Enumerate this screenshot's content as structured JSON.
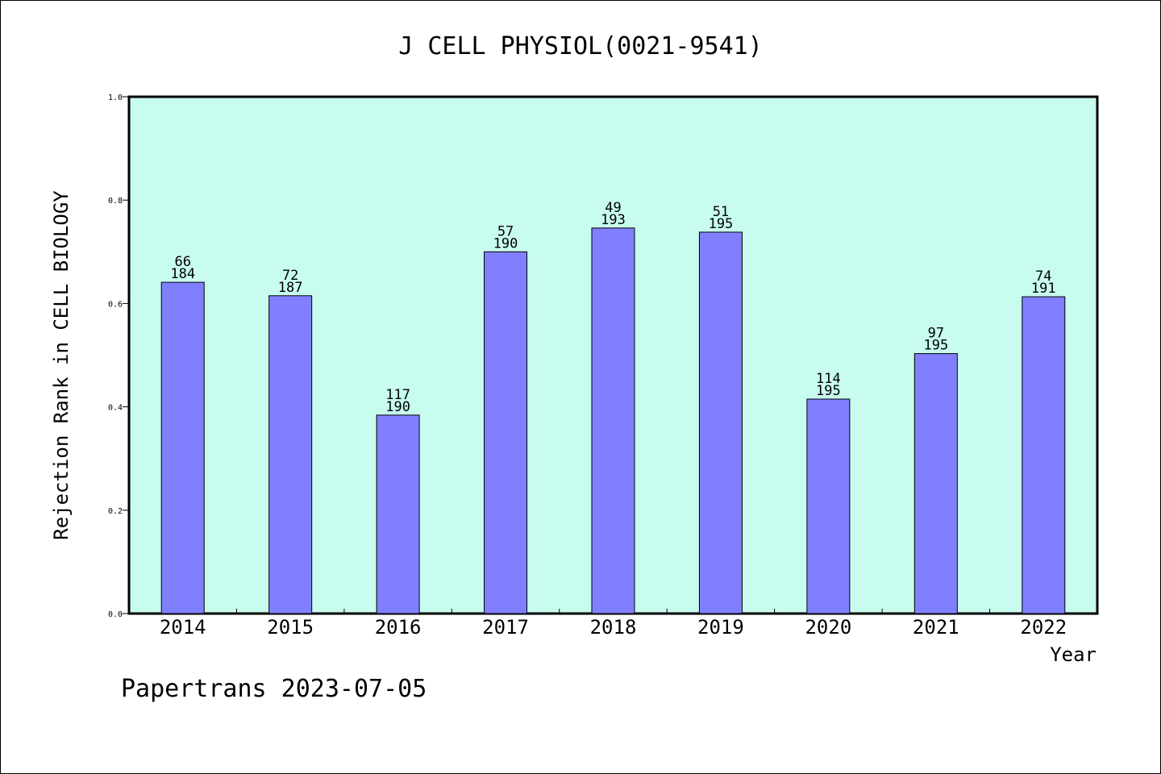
{
  "chart_data": {
    "type": "bar",
    "title": "J CELL PHYSIOL(0021-9541)",
    "xlabel": "Year",
    "ylabel": "Rejection Rank in CELL BIOLOGY",
    "ylim": [
      0,
      1.0
    ],
    "yticks": [
      "0.0",
      "0.2",
      "0.4",
      "0.6",
      "0.8",
      "1.0"
    ],
    "categories": [
      "2014",
      "2015",
      "2016",
      "2017",
      "2018",
      "2019",
      "2020",
      "2021",
      "2022"
    ],
    "values": [
      0.641,
      0.615,
      0.384,
      0.7,
      0.746,
      0.738,
      0.415,
      0.503,
      0.613
    ],
    "rank": [
      "66",
      "72",
      "117",
      "57",
      "49",
      "51",
      "114",
      "97",
      "74"
    ],
    "total": [
      "184",
      "187",
      "190",
      "190",
      "193",
      "195",
      "195",
      "195",
      "191"
    ],
    "grid": false,
    "legend": "none",
    "colors": {
      "plot_background": "#c8fcef",
      "bar_fill": "#8080ff",
      "bar_stroke": "#000000"
    }
  },
  "footer": {
    "credit": "Papertrans 2023-07-05"
  }
}
